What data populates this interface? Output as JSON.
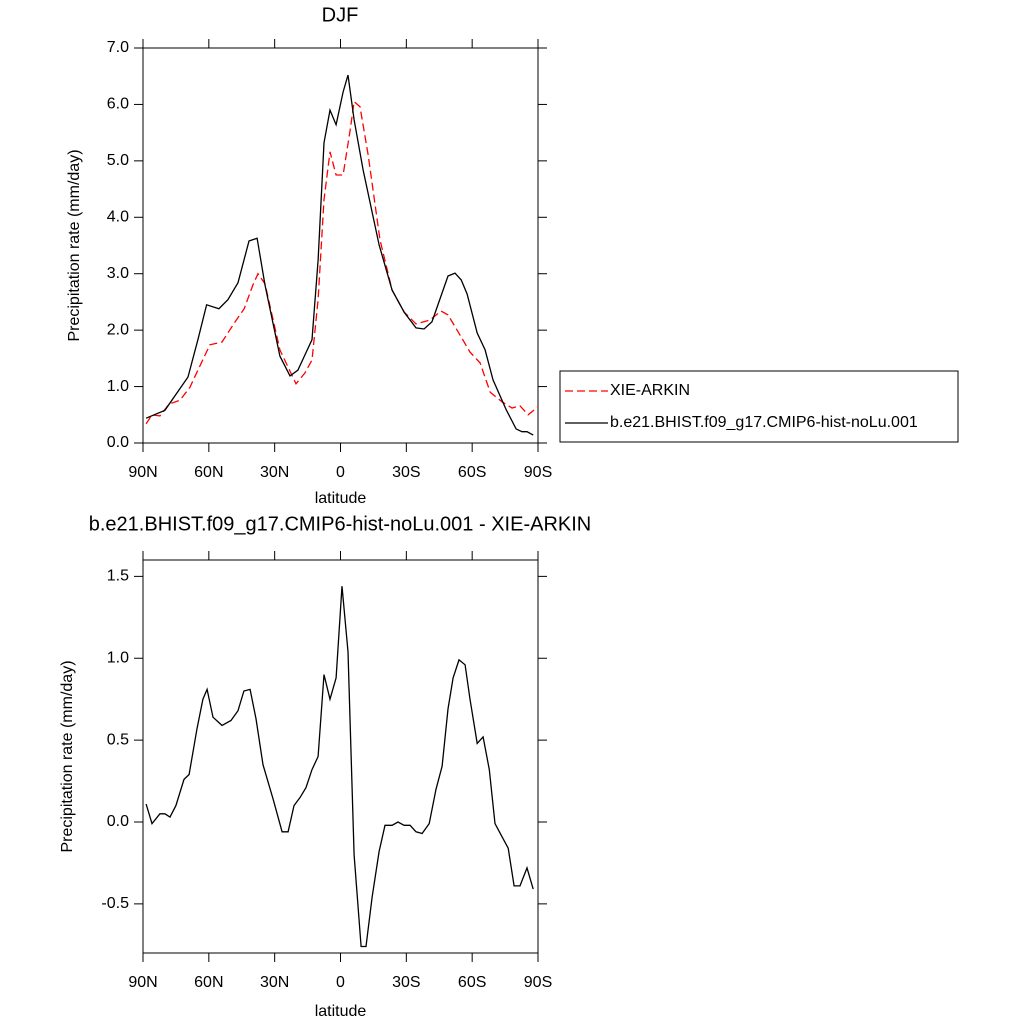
{
  "chart_data": [
    {
      "type": "line",
      "title": "DJF",
      "x_label": "latitude",
      "y_label": "Precipitation rate (mm/day)",
      "xlim": [
        90,
        -90
      ],
      "ylim": [
        0,
        7
      ],
      "xticks": [
        {
          "value": 90,
          "label": "90N"
        },
        {
          "value": 60,
          "label": "60N"
        },
        {
          "value": 30,
          "label": "30N"
        },
        0,
        {
          "value": -30,
          "label": "30S"
        },
        {
          "value": -60,
          "label": "60S"
        },
        {
          "value": -90,
          "label": "90S"
        }
      ],
      "yticks": [
        {
          "value": 0,
          "label": "0.0"
        },
        {
          "value": 1,
          "label": "1.0"
        },
        {
          "value": 2,
          "label": "2.0"
        },
        {
          "value": 3,
          "label": "3.0"
        },
        {
          "value": 4,
          "label": "4.0"
        },
        {
          "value": 5,
          "label": "5.0"
        },
        {
          "value": 6,
          "label": "6.0"
        },
        {
          "value": 7,
          "label": "7.0"
        }
      ],
      "legend": "right",
      "series": [
        {
          "name": "XIE-ARKIN",
          "color": "#ff0000",
          "line_style": "dashed",
          "x": [
            88.6,
            85.9,
            82.3,
            78.1,
            73.1,
            68.6,
            65,
            59.5,
            54,
            48,
            43.9,
            39.9,
            37.6,
            34.4,
            27.6,
            20.3,
            16.2,
            13,
            10.2,
            7.5,
            4.8,
            2,
            -1.2,
            -4.4,
            -6.2,
            -8.9,
            -12.6,
            -18,
            -23.5,
            -29,
            -34.4,
            -40.8,
            -45.8,
            -49,
            -53.6,
            -59,
            -63.6,
            -68.2,
            -73.6,
            -78.2,
            -81.8,
            -85.5,
            -90
          ],
          "values": [
            0.34,
            0.5,
            0.48,
            0.69,
            0.76,
            0.99,
            1.29,
            1.74,
            1.79,
            2.15,
            2.38,
            2.8,
            3.0,
            2.82,
            1.65,
            1.05,
            1.24,
            1.47,
            2.54,
            4.31,
            5.16,
            4.75,
            4.75,
            5.55,
            6.05,
            5.96,
            5.11,
            3.6,
            2.71,
            2.32,
            2.11,
            2.18,
            2.34,
            2.27,
            1.97,
            1.61,
            1.42,
            0.9,
            0.73,
            0.62,
            0.66,
            0.5,
            0.64
          ]
        },
        {
          "name": "b.e21.BHIST.f09_g17.CMIP6-hist-noLu.001",
          "color": "#000000",
          "line_style": "solid",
          "x": [
            88.6,
            80,
            69.5,
            65,
            61,
            55.4,
            51.3,
            46.7,
            41.7,
            38,
            34.4,
            27.6,
            23,
            19.4,
            16.2,
            13,
            10.2,
            7.5,
            4.8,
            2,
            -1.2,
            -3.4,
            -6.2,
            -10.3,
            -17.6,
            -23.5,
            -29,
            -34.4,
            -38.1,
            -41.7,
            -49,
            -52.2,
            -55,
            -57.7,
            -62.3,
            -65.9,
            -69.5,
            -75.5,
            -80,
            -82.7,
            -85,
            -87.8
          ],
          "values": [
            0.44,
            0.58,
            1.17,
            1.83,
            2.45,
            2.38,
            2.54,
            2.84,
            3.58,
            3.63,
            2.8,
            1.54,
            1.19,
            1.29,
            1.56,
            1.83,
            3.24,
            5.32,
            5.9,
            5.64,
            6.22,
            6.52,
            5.73,
            4.84,
            3.51,
            2.71,
            2.32,
            2.04,
            2.02,
            2.15,
            2.96,
            3.01,
            2.89,
            2.64,
            1.95,
            1.65,
            1.12,
            0.59,
            0.25,
            0.2,
            0.2,
            0.14
          ]
        }
      ]
    },
    {
      "type": "line",
      "title": "b.e21.BHIST.f09_g17.CMIP6-hist-noLu.001 - XIE-ARKIN",
      "x_label": "latitude",
      "y_label": "Precipitation rate (mm/day)",
      "xlim": [
        90,
        -90
      ],
      "ylim": [
        -0.8,
        1.6
      ],
      "xticks": [
        {
          "value": 90,
          "label": "90N"
        },
        {
          "value": 60,
          "label": "60N"
        },
        {
          "value": 30,
          "label": "30N"
        },
        0,
        {
          "value": -30,
          "label": "30S"
        },
        {
          "value": -60,
          "label": "60S"
        },
        {
          "value": -90,
          "label": "90S"
        }
      ],
      "yticks": [
        -0.5,
        {
          "value": 0,
          "label": "0.0"
        },
        0.5,
        {
          "value": 1,
          "label": "1.0"
        },
        1.5
      ],
      "series": [
        {
          "color": "#000000",
          "line_style": "solid",
          "x": [
            88.6,
            85.9,
            82.3,
            80,
            77.7,
            75,
            71.3,
            69,
            65.4,
            62.7,
            60.8,
            58.1,
            54,
            49.9,
            46.7,
            44,
            41.2,
            38.5,
            35.3,
            30.7,
            26.6,
            23.9,
            21.2,
            18.4,
            15.7,
            13,
            10.2,
            7.5,
            4.8,
            2,
            -0.7,
            -3.4,
            -6.2,
            -9.4,
            -11.6,
            -14.4,
            -17.6,
            -20.3,
            -23.5,
            -26.2,
            -29,
            -31.7,
            -34.4,
            -37.2,
            -40.4,
            -43.5,
            -46.3,
            -49,
            -51.3,
            -54,
            -56.8,
            -59,
            -62.3,
            -65,
            -67.8,
            -70.4,
            -73.6,
            -76.4,
            -79.1,
            -81.8,
            -85,
            -87.8
          ],
          "values": [
            0.11,
            -0.01,
            0.05,
            0.05,
            0.03,
            0.1,
            0.26,
            0.29,
            0.57,
            0.75,
            0.81,
            0.64,
            0.59,
            0.62,
            0.68,
            0.8,
            0.81,
            0.63,
            0.35,
            0.14,
            -0.06,
            -0.06,
            0.1,
            0.15,
            0.21,
            0.32,
            0.4,
            0.9,
            0.75,
            0.88,
            1.44,
            1.04,
            -0.2,
            -0.76,
            -0.76,
            -0.46,
            -0.18,
            -0.02,
            -0.02,
            0.0,
            -0.02,
            -0.02,
            -0.06,
            -0.07,
            -0.01,
            0.2,
            0.34,
            0.69,
            0.88,
            0.99,
            0.96,
            0.75,
            0.48,
            0.52,
            0.32,
            -0.01,
            -0.09,
            -0.16,
            -0.39,
            -0.39,
            -0.28,
            -0.41
          ]
        }
      ]
    }
  ]
}
